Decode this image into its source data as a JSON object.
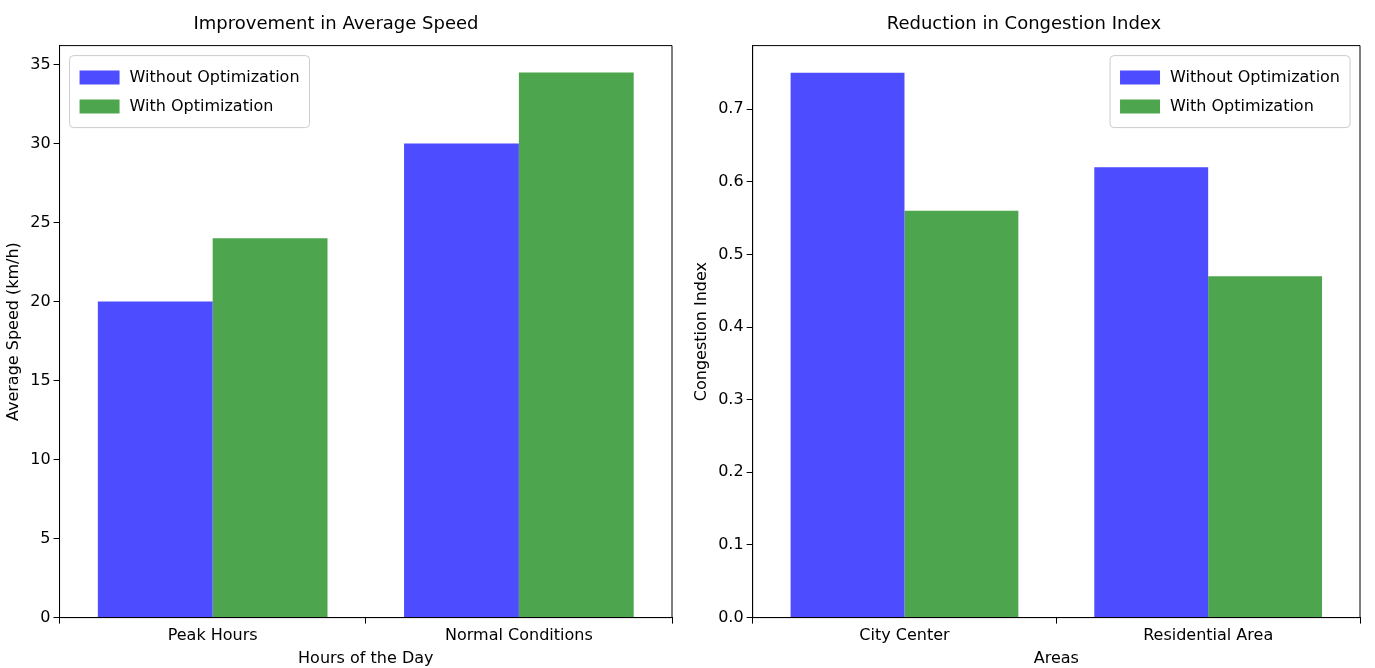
{
  "chart_data": [
    {
      "type": "bar",
      "title": "Improvement in Average Speed",
      "xlabel": "Hours of the Day",
      "ylabel": "Average Speed (km/h)",
      "categories": [
        "Peak Hours",
        "Normal Conditions"
      ],
      "series": [
        {
          "name": "Without Optimization",
          "color": "#4d4dff",
          "values": [
            20,
            30
          ]
        },
        {
          "name": "With Optimization",
          "color": "#4da64d",
          "values": [
            24,
            34.5
          ]
        }
      ],
      "ylim": [
        0,
        36.2
      ],
      "yticks": [
        0,
        5,
        10,
        15,
        20,
        25,
        30,
        35
      ],
      "grid": false,
      "legend": "top left"
    },
    {
      "type": "bar",
      "title": "Reduction in Congestion Index",
      "xlabel": "Areas",
      "ylabel": "Congestion Index",
      "categories": [
        "City Center",
        "Residential Area"
      ],
      "series": [
        {
          "name": "Without Optimization",
          "color": "#4d4dff",
          "values": [
            0.75,
            0.62
          ]
        },
        {
          "name": "With Optimization",
          "color": "#4da64d",
          "values": [
            0.56,
            0.47
          ]
        }
      ],
      "ylim": [
        0,
        0.7875
      ],
      "yticks": [
        {
          "value": 0,
          "label": "0.0"
        },
        0.1,
        0.2,
        0.3,
        0.4,
        0.5,
        0.6,
        0.7
      ],
      "grid": false,
      "legend": "top right"
    }
  ]
}
